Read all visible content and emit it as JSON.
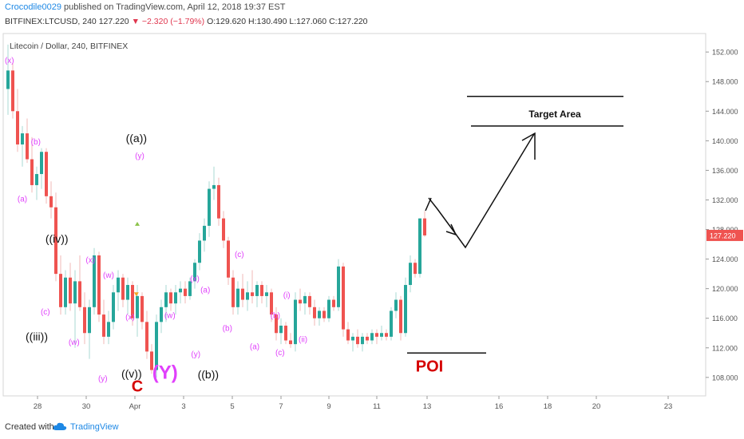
{
  "header": {
    "author": "Crocodile0029",
    "published": "published on TradingView.com, April 12, 2018 19:37 EST",
    "symbol_line": "BITFINEX:LTCUSD, 240",
    "last": "127.220",
    "change": "−2.320 (−1.79%)",
    "ohlc_o": "O:129.620",
    "ohlc_h": "H:130.490",
    "ohlc_l": "L:127.060",
    "ohlc_c": "C:127.220"
  },
  "footer": {
    "created_with": "Created with",
    "brand": "TradingView"
  },
  "colors": {
    "up": "#26a69a",
    "down": "#ef5350",
    "wave_magenta": "#e040fb",
    "poi_red": "#d50000",
    "axis_text": "#555555"
  },
  "chart_data": {
    "type": "candlestick",
    "title": "Litecoin / Dollar, 240, BITFINEX",
    "symbol": "BITFINEX:LTCUSD",
    "interval": "240",
    "y_axis": {
      "ticks": [
        108,
        112,
        116,
        120,
        124,
        128,
        132,
        136,
        140,
        144,
        148,
        152
      ],
      "tick_labels": [
        "108.000",
        "112.000",
        "116.000",
        "120.000",
        "124.000",
        "128.000",
        "132.000",
        "136.000",
        "140.000",
        "144.000",
        "148.000",
        "152.000"
      ],
      "range": [
        105.5,
        154.5
      ]
    },
    "x_axis": {
      "tick_labels": [
        "28",
        "30",
        "Apr",
        "3",
        "5",
        "7",
        "9",
        "11",
        "13",
        "16",
        "18",
        "20",
        "23"
      ]
    },
    "last_price_label": "127.220",
    "candles": [
      {
        "o": 147.0,
        "h": 153.0,
        "l": 143.5,
        "c": 149.5
      },
      {
        "o": 149.5,
        "h": 150.5,
        "l": 143.0,
        "c": 144.0
      },
      {
        "o": 144.0,
        "h": 147.0,
        "l": 138.5,
        "c": 139.5
      },
      {
        "o": 139.5,
        "h": 142.0,
        "l": 136.5,
        "c": 141.0
      },
      {
        "o": 141.0,
        "h": 143.0,
        "l": 137.0,
        "c": 137.5
      },
      {
        "o": 137.5,
        "h": 140.5,
        "l": 133.0,
        "c": 134.0
      },
      {
        "o": 134.0,
        "h": 136.5,
        "l": 132.0,
        "c": 135.5
      },
      {
        "o": 135.5,
        "h": 139.0,
        "l": 133.5,
        "c": 138.5
      },
      {
        "o": 138.5,
        "h": 139.0,
        "l": 131.5,
        "c": 132.5
      },
      {
        "o": 132.5,
        "h": 134.5,
        "l": 129.5,
        "c": 131.0
      },
      {
        "o": 131.0,
        "h": 133.0,
        "l": 121.0,
        "c": 122.0
      },
      {
        "o": 122.0,
        "h": 124.5,
        "l": 116.5,
        "c": 117.5
      },
      {
        "o": 117.5,
        "h": 122.5,
        "l": 116.5,
        "c": 121.5
      },
      {
        "o": 121.5,
        "h": 123.5,
        "l": 117.0,
        "c": 118.0
      },
      {
        "o": 118.0,
        "h": 122.5,
        "l": 112.0,
        "c": 121.0
      },
      {
        "o": 121.0,
        "h": 124.5,
        "l": 117.0,
        "c": 117.5
      },
      {
        "o": 117.5,
        "h": 119.5,
        "l": 112.5,
        "c": 114.0
      },
      {
        "o": 114.0,
        "h": 118.5,
        "l": 110.5,
        "c": 117.5
      },
      {
        "o": 117.5,
        "h": 125.5,
        "l": 116.5,
        "c": 124.5
      },
      {
        "o": 124.5,
        "h": 125.0,
        "l": 115.5,
        "c": 116.5
      },
      {
        "o": 116.5,
        "h": 118.5,
        "l": 112.5,
        "c": 113.5
      },
      {
        "o": 113.5,
        "h": 117.0,
        "l": 112.5,
        "c": 115.5
      },
      {
        "o": 115.5,
        "h": 120.5,
        "l": 114.5,
        "c": 119.5
      },
      {
        "o": 119.5,
        "h": 122.5,
        "l": 117.0,
        "c": 121.5
      },
      {
        "o": 121.5,
        "h": 122.0,
        "l": 117.5,
        "c": 118.5
      },
      {
        "o": 118.5,
        "h": 121.5,
        "l": 116.5,
        "c": 120.5
      },
      {
        "o": 120.5,
        "h": 121.0,
        "l": 115.0,
        "c": 116.0
      },
      {
        "o": 116.0,
        "h": 120.5,
        "l": 113.5,
        "c": 119.0
      },
      {
        "o": 119.0,
        "h": 119.5,
        "l": 114.5,
        "c": 115.5
      },
      {
        "o": 115.5,
        "h": 117.0,
        "l": 110.5,
        "c": 111.5
      },
      {
        "o": 111.5,
        "h": 112.5,
        "l": 108.5,
        "c": 109.0
      },
      {
        "o": 109.0,
        "h": 116.5,
        "l": 108.0,
        "c": 115.5
      },
      {
        "o": 115.5,
        "h": 118.5,
        "l": 114.0,
        "c": 117.5
      },
      {
        "o": 117.5,
        "h": 120.5,
        "l": 115.5,
        "c": 119.5
      },
      {
        "o": 119.5,
        "h": 120.0,
        "l": 117.0,
        "c": 118.0
      },
      {
        "o": 118.0,
        "h": 120.5,
        "l": 116.5,
        "c": 119.5
      },
      {
        "o": 119.5,
        "h": 121.0,
        "l": 118.0,
        "c": 120.0
      },
      {
        "o": 120.0,
        "h": 121.0,
        "l": 118.0,
        "c": 119.0
      },
      {
        "o": 119.0,
        "h": 121.5,
        "l": 118.5,
        "c": 121.0
      },
      {
        "o": 121.0,
        "h": 124.0,
        "l": 120.0,
        "c": 123.5
      },
      {
        "o": 123.5,
        "h": 127.5,
        "l": 122.5,
        "c": 126.5
      },
      {
        "o": 126.5,
        "h": 129.5,
        "l": 125.0,
        "c": 128.5
      },
      {
        "o": 128.5,
        "h": 134.5,
        "l": 127.0,
        "c": 133.5
      },
      {
        "o": 133.5,
        "h": 136.5,
        "l": 132.0,
        "c": 134.0
      },
      {
        "o": 134.0,
        "h": 135.0,
        "l": 128.5,
        "c": 129.5
      },
      {
        "o": 129.5,
        "h": 130.5,
        "l": 125.5,
        "c": 126.5
      },
      {
        "o": 126.5,
        "h": 127.0,
        "l": 120.5,
        "c": 121.5
      },
      {
        "o": 121.5,
        "h": 122.5,
        "l": 116.5,
        "c": 117.5
      },
      {
        "o": 117.5,
        "h": 121.0,
        "l": 116.5,
        "c": 120.0
      },
      {
        "o": 120.0,
        "h": 122.0,
        "l": 117.5,
        "c": 118.5
      },
      {
        "o": 118.5,
        "h": 121.0,
        "l": 117.0,
        "c": 119.5
      },
      {
        "o": 119.5,
        "h": 122.5,
        "l": 118.0,
        "c": 119.0
      },
      {
        "o": 119.0,
        "h": 121.0,
        "l": 117.5,
        "c": 120.5
      },
      {
        "o": 120.5,
        "h": 121.0,
        "l": 118.0,
        "c": 119.0
      },
      {
        "o": 119.0,
        "h": 120.5,
        "l": 117.5,
        "c": 119.5
      },
      {
        "o": 119.5,
        "h": 120.0,
        "l": 115.5,
        "c": 116.5
      },
      {
        "o": 116.5,
        "h": 117.5,
        "l": 113.0,
        "c": 114.0
      },
      {
        "o": 114.0,
        "h": 116.0,
        "l": 112.5,
        "c": 115.0
      },
      {
        "o": 115.0,
        "h": 115.5,
        "l": 112.5,
        "c": 113.0
      },
      {
        "o": 113.0,
        "h": 114.0,
        "l": 112.0,
        "c": 112.5
      },
      {
        "o": 112.5,
        "h": 119.5,
        "l": 111.5,
        "c": 118.5
      },
      {
        "o": 118.5,
        "h": 120.0,
        "l": 117.0,
        "c": 118.0
      },
      {
        "o": 118.0,
        "h": 119.5,
        "l": 116.5,
        "c": 119.0
      },
      {
        "o": 119.0,
        "h": 119.5,
        "l": 116.5,
        "c": 117.5
      },
      {
        "o": 117.5,
        "h": 118.5,
        "l": 115.0,
        "c": 116.0
      },
      {
        "o": 116.0,
        "h": 117.5,
        "l": 115.0,
        "c": 117.0
      },
      {
        "o": 117.0,
        "h": 117.5,
        "l": 115.5,
        "c": 116.0
      },
      {
        "o": 116.0,
        "h": 119.0,
        "l": 115.5,
        "c": 118.5
      },
      {
        "o": 118.5,
        "h": 119.0,
        "l": 117.0,
        "c": 117.5
      },
      {
        "o": 117.5,
        "h": 124.0,
        "l": 117.0,
        "c": 123.0
      },
      {
        "o": 123.0,
        "h": 123.5,
        "l": 113.5,
        "c": 114.5
      },
      {
        "o": 114.5,
        "h": 115.5,
        "l": 112.5,
        "c": 113.0
      },
      {
        "o": 113.0,
        "h": 114.0,
        "l": 111.5,
        "c": 113.5
      },
      {
        "o": 113.5,
        "h": 114.5,
        "l": 112.0,
        "c": 112.5
      },
      {
        "o": 112.5,
        "h": 114.0,
        "l": 111.5,
        "c": 113.5
      },
      {
        "o": 113.5,
        "h": 114.0,
        "l": 112.5,
        "c": 113.0
      },
      {
        "o": 113.0,
        "h": 114.5,
        "l": 112.5,
        "c": 114.0
      },
      {
        "o": 114.0,
        "h": 114.5,
        "l": 112.5,
        "c": 113.5
      },
      {
        "o": 113.5,
        "h": 115.0,
        "l": 113.0,
        "c": 114.0
      },
      {
        "o": 114.0,
        "h": 114.5,
        "l": 113.0,
        "c": 113.5
      },
      {
        "o": 113.5,
        "h": 117.5,
        "l": 113.0,
        "c": 117.0
      },
      {
        "o": 117.0,
        "h": 119.5,
        "l": 116.0,
        "c": 118.5
      },
      {
        "o": 118.5,
        "h": 119.0,
        "l": 113.0,
        "c": 114.0
      },
      {
        "o": 114.0,
        "h": 121.5,
        "l": 113.5,
        "c": 120.5
      },
      {
        "o": 120.5,
        "h": 124.5,
        "l": 119.5,
        "c": 123.5
      },
      {
        "o": 123.5,
        "h": 124.0,
        "l": 121.5,
        "c": 122.0
      },
      {
        "o": 122.0,
        "h": 129.5,
        "l": 121.5,
        "c": 129.5
      },
      {
        "o": 129.5,
        "h": 130.5,
        "l": 127.0,
        "c": 127.2
      }
    ],
    "annotations": [
      {
        "text": "(x)",
        "price": 150.5,
        "idx": 0.3,
        "kind": "minor"
      },
      {
        "text": "(b)",
        "price": 139.5,
        "idx": 5.8,
        "kind": "minor"
      },
      {
        "text": "(a)",
        "price": 131.8,
        "idx": 3.0,
        "kind": "minor"
      },
      {
        "text": "((iv))",
        "price": 126.2,
        "idx": 10.2,
        "kind": "major"
      },
      {
        "text": "(c)",
        "price": 116.5,
        "idx": 7.8,
        "kind": "minor"
      },
      {
        "text": "((iii))",
        "price": 113.0,
        "idx": 6.0,
        "kind": "major"
      },
      {
        "text": "(w)",
        "price": 112.4,
        "idx": 13.8,
        "kind": "minor"
      },
      {
        "text": "(x)",
        "price": 123.5,
        "idx": 17.2,
        "kind": "minor"
      },
      {
        "text": "(w)",
        "price": 121.5,
        "idx": 21.0,
        "kind": "minor"
      },
      {
        "text": "(x)",
        "price": 115.8,
        "idx": 25.5,
        "kind": "minor"
      },
      {
        "text": "(y)",
        "price": 107.5,
        "idx": 19.8,
        "kind": "minor"
      },
      {
        "text": "((v))",
        "price": 108.0,
        "idx": 25.8,
        "kind": "major"
      },
      {
        "text": "C",
        "price": 106.1,
        "idx": 27.0,
        "kind": "red-big"
      },
      {
        "text": "(Y)",
        "price": 107.8,
        "idx": 32.8,
        "kind": "magenta-big"
      },
      {
        "text": "((a))",
        "price": 139.8,
        "idx": 26.8,
        "kind": "major"
      },
      {
        "text": "(y)",
        "price": 137.6,
        "idx": 27.5,
        "kind": "minor"
      },
      {
        "text": "(w)",
        "price": 116.0,
        "idx": 33.8,
        "kind": "minor"
      },
      {
        "text": "(x)",
        "price": 121.0,
        "idx": 39.0,
        "kind": "minor"
      },
      {
        "text": "(y)",
        "price": 110.8,
        "idx": 39.2,
        "kind": "minor"
      },
      {
        "text": "((b))",
        "price": 107.9,
        "idx": 41.8,
        "kind": "major"
      },
      {
        "text": "(a)",
        "price": 119.5,
        "idx": 41.2,
        "kind": "minor"
      },
      {
        "text": "(b)",
        "price": 114.3,
        "idx": 45.8,
        "kind": "minor"
      },
      {
        "text": "(c)",
        "price": 124.3,
        "idx": 48.3,
        "kind": "minor"
      },
      {
        "text": "(a)",
        "price": 111.8,
        "idx": 51.5,
        "kind": "minor"
      },
      {
        "text": "(b)",
        "price": 116.0,
        "idx": 55.8,
        "kind": "minor"
      },
      {
        "text": "(c)",
        "price": 111.0,
        "idx": 56.8,
        "kind": "minor"
      },
      {
        "text": "(i)",
        "price": 118.8,
        "idx": 58.2,
        "kind": "minor"
      },
      {
        "text": "(ii)",
        "price": 112.8,
        "idx": 61.6,
        "kind": "minor"
      }
    ],
    "drawings": {
      "target_area_label": "Target Area",
      "target_top": 146.0,
      "target_bottom": 142.0,
      "poi_label": "POI",
      "poi_price": 111.3
    }
  }
}
